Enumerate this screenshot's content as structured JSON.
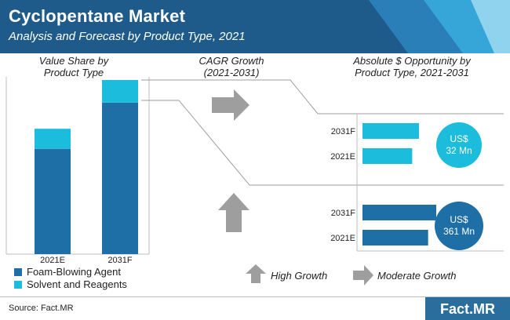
{
  "header": {
    "title": "Cyclopentane Market",
    "subtitle": "Analysis and Forecast by Product Type, 2021"
  },
  "sections": {
    "value_share": "Value Share by\nProduct Type",
    "cagr": "CAGR Growth\n(2021-2031)",
    "opportunity": "Absolute $ Opportunity by\nProduct Type, 2021-2031"
  },
  "colors": {
    "foam": "#1d6fa5",
    "solvent": "#1bbcdc",
    "arrow": "#9e9e9e",
    "header_dark": "#1e5a8a",
    "header_light": "#36a6d8"
  },
  "chart_data": [
    {
      "type": "bar",
      "stacked": true,
      "categories": [
        "2021E",
        "2031F"
      ],
      "series": [
        {
          "name": "Foam-Blowing Agent",
          "values": [
            84,
            87
          ]
        },
        {
          "name": "Solvent and Reagents",
          "values": [
            16,
            13
          ]
        }
      ],
      "height_scale_relative": [
        0.72,
        1.0
      ],
      "legend_position": "bottom"
    },
    {
      "type": "bar",
      "orientation": "horizontal",
      "segment": "Solvent and Reagents",
      "categories": [
        "2031F",
        "2021E"
      ],
      "values": [
        1.0,
        0.88
      ],
      "annotation": {
        "line1": "US$",
        "line2": "32 Mn"
      }
    },
    {
      "type": "bar",
      "orientation": "horizontal",
      "segment": "Foam-Blowing Agent",
      "categories": [
        "2031F",
        "2021E"
      ],
      "values": [
        1.0,
        0.89
      ],
      "annotation": {
        "line1": "US$",
        "line2": "361 Mn"
      }
    }
  ],
  "legend": {
    "foam": "Foam-Blowing Agent",
    "solvent": "Solvent and Reagents"
  },
  "growth_legend": {
    "high": "High Growth",
    "moderate": "Moderate Growth"
  },
  "footer": {
    "source": "Source: Fact.MR",
    "logo": "Fact.MR"
  }
}
